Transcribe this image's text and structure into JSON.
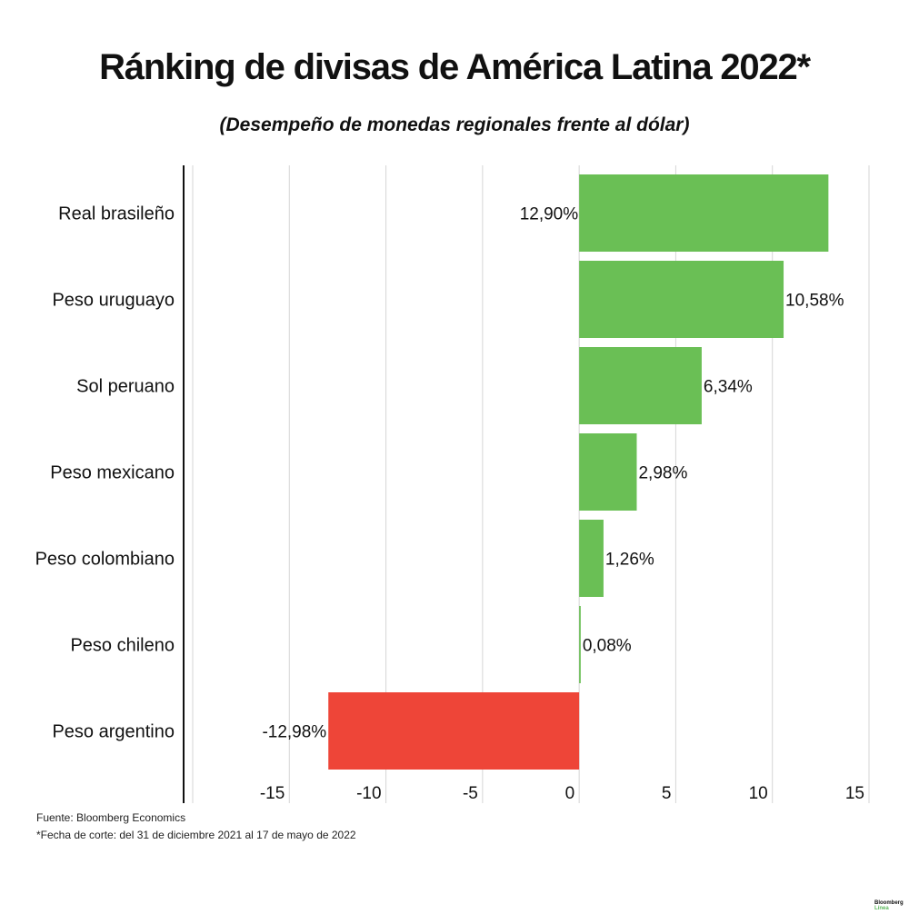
{
  "title": "Ránking de divisas de América Latina 2022*",
  "subtitle": "(Desempeño de monedas regionales frente al dólar)",
  "footer": {
    "source": "Fuente: Bloomberg Economics",
    "note": "*Fecha de corte: del 31 de diciembre 2021 al 17 de mayo de 2022"
  },
  "logo": {
    "line1": "Bloomberg",
    "line2": "Línea"
  },
  "chart_data": {
    "type": "bar",
    "orientation": "horizontal",
    "categories": [
      "Real brasileño",
      "Peso uruguayo",
      "Sol peruano",
      "Peso mexicano",
      "Peso colombiano",
      "Peso chileno",
      "Peso argentino"
    ],
    "values": [
      12.9,
      10.58,
      6.34,
      2.98,
      1.26,
      0.08,
      -12.98
    ],
    "data_labels": [
      "12,90%",
      "10,58%",
      "6,34%",
      "2,98%",
      "1,26%",
      "0,08%",
      "-12,98%"
    ],
    "xlim": [
      -20,
      15
    ],
    "xticks": [
      -15,
      -10,
      -5,
      0,
      5,
      10,
      15
    ],
    "xtick_labels": [
      "-15",
      "-10",
      "-5",
      "0",
      "5",
      "10",
      "15"
    ],
    "grid": true,
    "colors": {
      "positive": "#6abf55",
      "negative": "#ee4538"
    }
  }
}
